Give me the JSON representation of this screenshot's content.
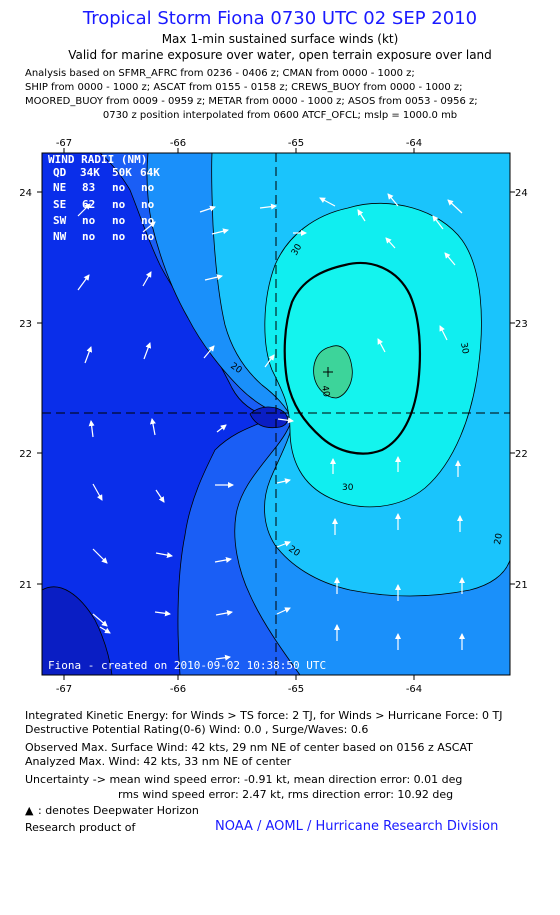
{
  "header": {
    "title": "Tropical Storm Fiona 0730 UTC 02 SEP 2010",
    "subtitle1": "Max 1-min sustained surface winds (kt)",
    "subtitle2": "Valid for marine exposure over water, open terrain exposure over land"
  },
  "analysis_lines": [
    "Analysis based on SFMR_AFRC from 0236 - 0406 z; CMAN from 0000 - 1000 z;",
    "SHIP from 0000 - 1000 z; ASCAT from 0155 - 0158 z; CREWS_BUOY from 0000 - 1000 z;",
    "MOORED_BUOY from 0009 - 0959 z; METAR from 0000 - 1000 z; ASOS from 0053 - 0956 z;"
  ],
  "position_line": "0730 z position interpolated from 0600 ATCF_OFCL; mslp = 1000.0 mb",
  "map": {
    "lon_ticks": [
      "-67",
      "-66",
      "-65",
      "-64"
    ],
    "lat_ticks": [
      "24",
      "23",
      "22",
      "21"
    ],
    "contour_labels": [
      "20",
      "20",
      "30",
      "30",
      "30",
      "40",
      "20"
    ],
    "created_label": "Fiona - created on 2010-09-02 10:38:50 UTC",
    "colors": {
      "outer": "#0a2eea",
      "level2": "#1a5ef5",
      "level3": "#1a90fa",
      "level4": "#1ac4fc",
      "level5": "#10eef0",
      "core": "#3dd49a",
      "dark": "#0a1ec4"
    }
  },
  "wind_radii": {
    "title": "WIND RADII (NM)",
    "columns": [
      "QD",
      "34K",
      "50K",
      "64K"
    ],
    "rows": [
      [
        "NE",
        "83",
        "no",
        "no"
      ],
      [
        "SE",
        "62",
        "no",
        "no"
      ],
      [
        "SW",
        "no",
        "no",
        "no"
      ],
      [
        "NW",
        "no",
        "no",
        "no"
      ]
    ]
  },
  "footer": {
    "ike": "Integrated Kinetic Energy:  for Winds > TS force: 2 TJ,  for Winds > Hurricane Force: 0 TJ",
    "dpr": "Destructive Potential Rating(0-6)   Wind: 0.0 , Surge/Waves: 0.6",
    "observed": "Observed Max. Surface Wind: 42 kts, 29 nm NE of center based on 0156 z ASCAT",
    "analyzed": "Analyzed Max. Wind: 42 kts, 33 nm NE of center",
    "uncertainty1": "Uncertainty -> mean wind speed error:  -0.91 kt,   mean direction error: 0.01 deg",
    "uncertainty2": "rms wind speed error: 2.47 kt,   rms direction error: 10.92 deg",
    "deepwater": ": denotes Deepwater Horizon",
    "research": "Research product of",
    "research_link": "NOAA / AOML / Hurricane Research Division"
  }
}
